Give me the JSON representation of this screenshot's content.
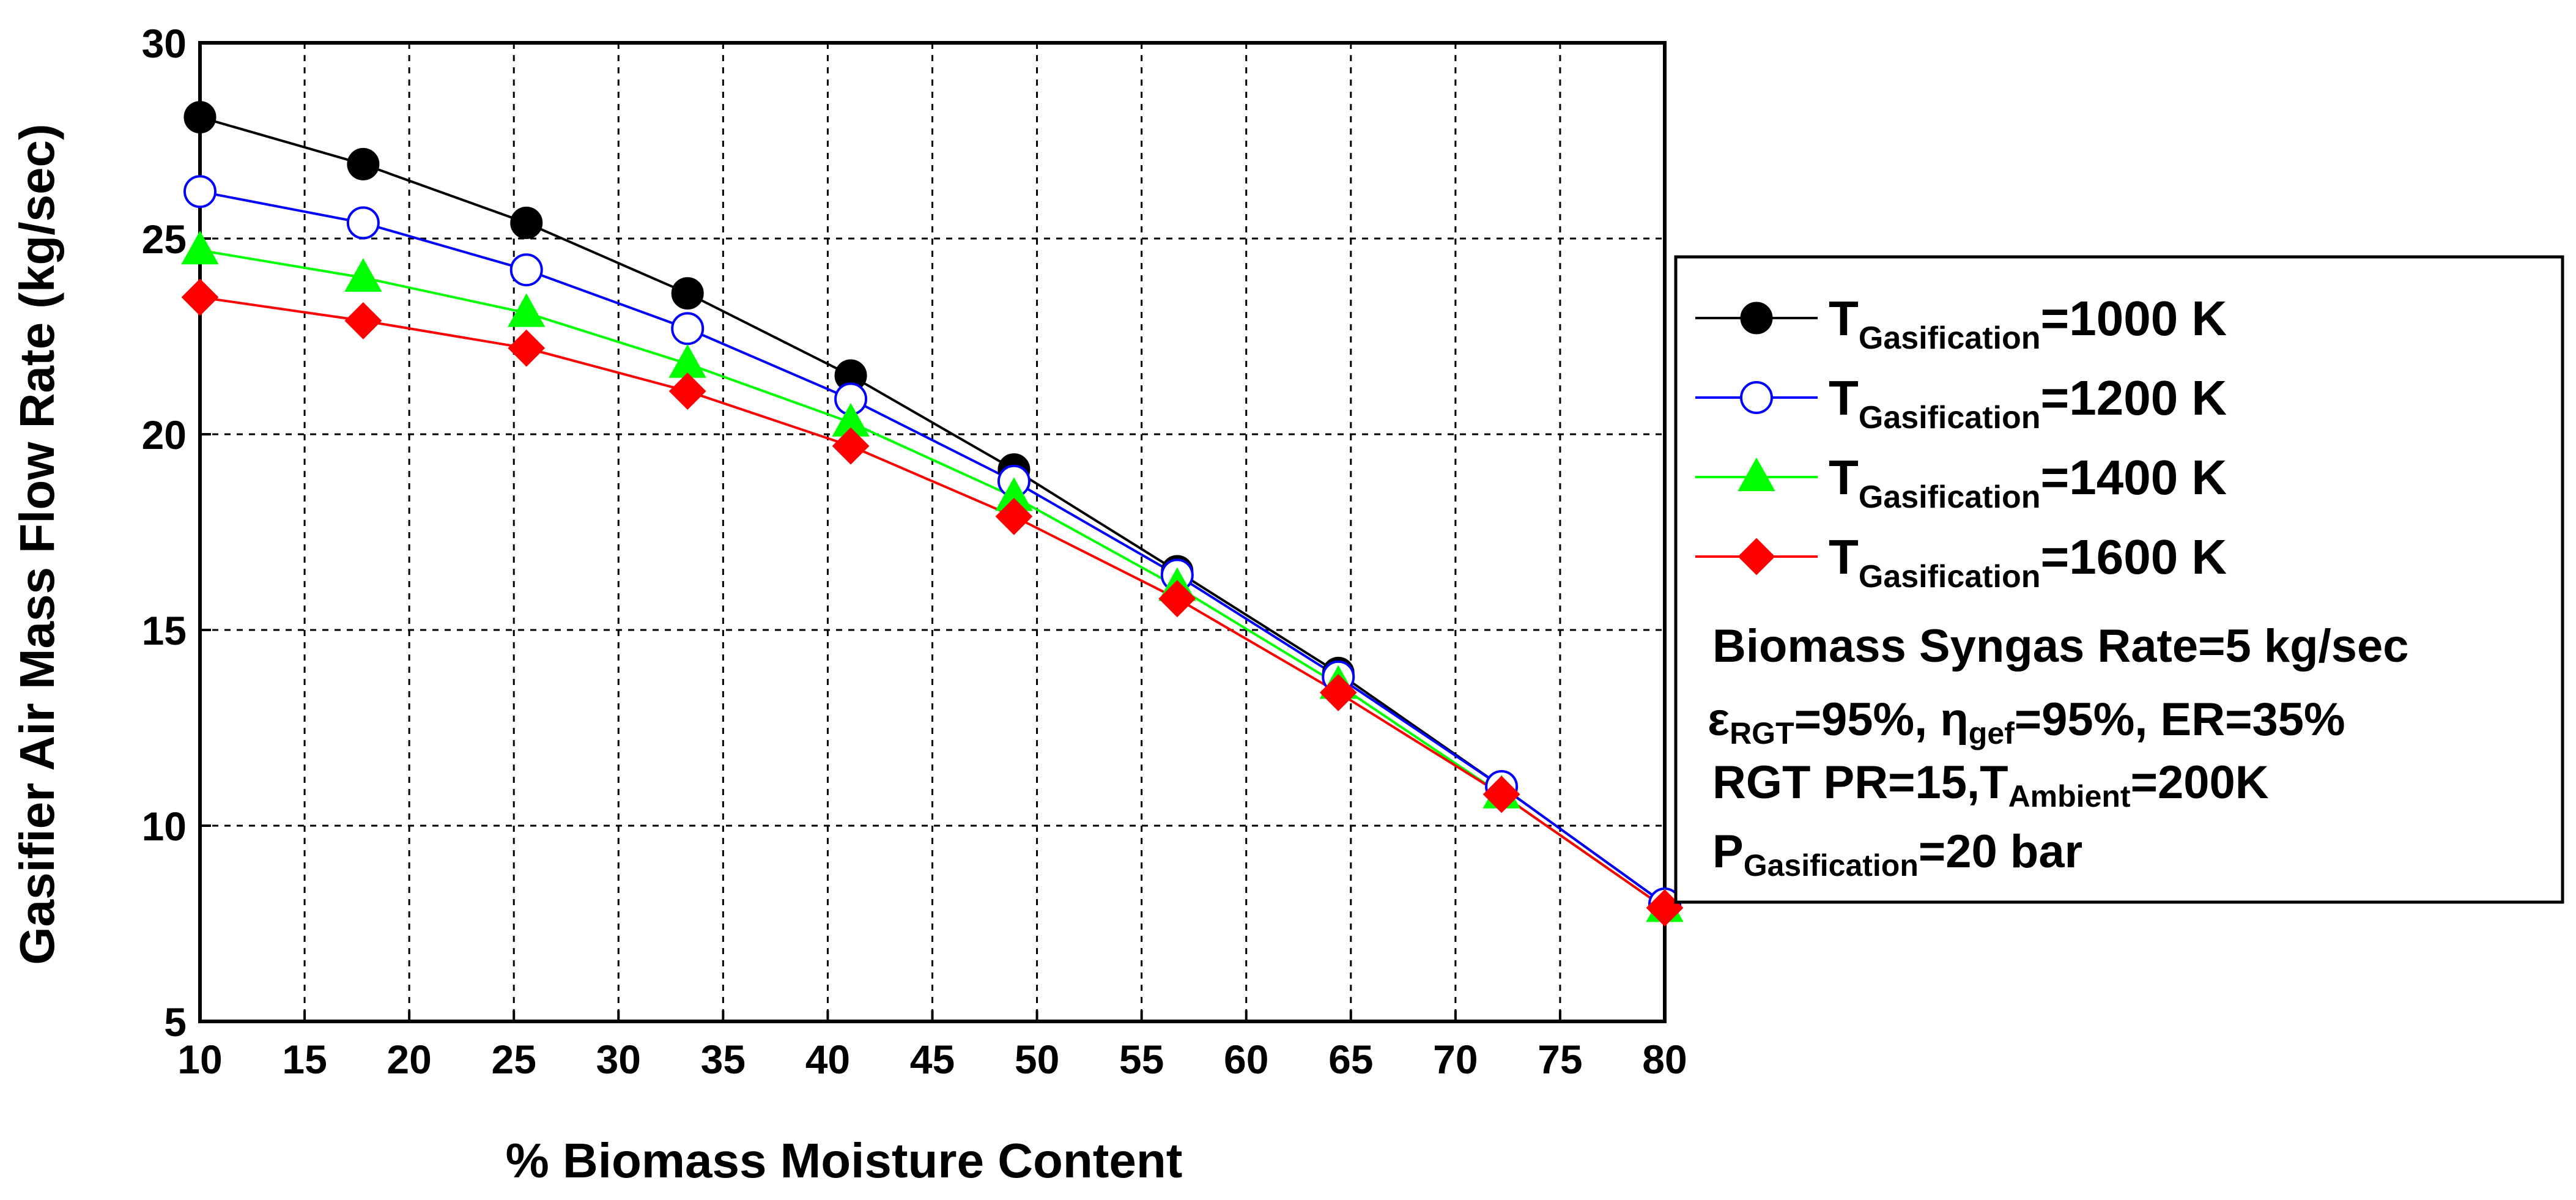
{
  "chart_data": {
    "type": "line",
    "xlabel": "% Biomass Moisture Content",
    "ylabel": "Gasifier Air Mass Flow Rate (kg/sec)",
    "xlim": [
      10,
      80
    ],
    "ylim": [
      5,
      30
    ],
    "xticks": [
      10,
      15,
      20,
      25,
      30,
      35,
      40,
      45,
      50,
      55,
      60,
      65,
      70,
      75,
      80
    ],
    "yticks": [
      5,
      10,
      15,
      20,
      25,
      30
    ],
    "grid": true,
    "x": [
      10,
      17.8,
      25.6,
      33.3,
      41.1,
      48.9,
      56.7,
      64.4,
      72.2,
      80
    ],
    "series": [
      {
        "name": "T_Gasification=1000 K",
        "legend_main": "T",
        "legend_sub": "Gasification",
        "legend_rest": "=1000 K",
        "color": "#000000",
        "marker": "circle-filled",
        "values": [
          28.1,
          26.9,
          25.4,
          23.6,
          21.5,
          19.1,
          16.5,
          13.9,
          11.0,
          8.0
        ]
      },
      {
        "name": "T_Gasification=1200 K",
        "legend_main": "T",
        "legend_sub": "Gasification",
        "legend_rest": "=1200 K",
        "color": "#0000ff",
        "marker": "circle-open",
        "values": [
          26.2,
          25.4,
          24.2,
          22.7,
          20.9,
          18.8,
          16.4,
          13.8,
          11.0,
          8.0
        ]
      },
      {
        "name": "T_Gasification=1400 K",
        "legend_main": "T",
        "legend_sub": "Gasification",
        "legend_rest": "=1400 K",
        "color": "#00ff00",
        "marker": "triangle",
        "values": [
          24.7,
          24.0,
          23.1,
          21.8,
          20.3,
          18.4,
          16.1,
          13.6,
          10.8,
          7.9
        ]
      },
      {
        "name": "T_Gasification=1600 K",
        "legend_main": "T",
        "legend_sub": "Gasification",
        "legend_rest": "=1600 K",
        "color": "#ff0000",
        "marker": "diamond",
        "values": [
          23.5,
          22.9,
          22.2,
          21.1,
          19.7,
          17.9,
          15.8,
          13.4,
          10.8,
          7.9
        ]
      }
    ],
    "annotations": {
      "line1": "Biomass Syngas Rate=5 kg/sec",
      "line2_sym1": "ε",
      "line2_sub1": "RGT",
      "line2_mid": "=95%, η",
      "line2_sub2": "gef",
      "line2_end": "=95%, ER=35%",
      "line3_start": "RGT PR=15,T",
      "line3_sub": "Ambient",
      "line3_end": "=200K",
      "line4_start": "P",
      "line4_sub": "Gasification",
      "line4_end": "=20 bar"
    }
  }
}
